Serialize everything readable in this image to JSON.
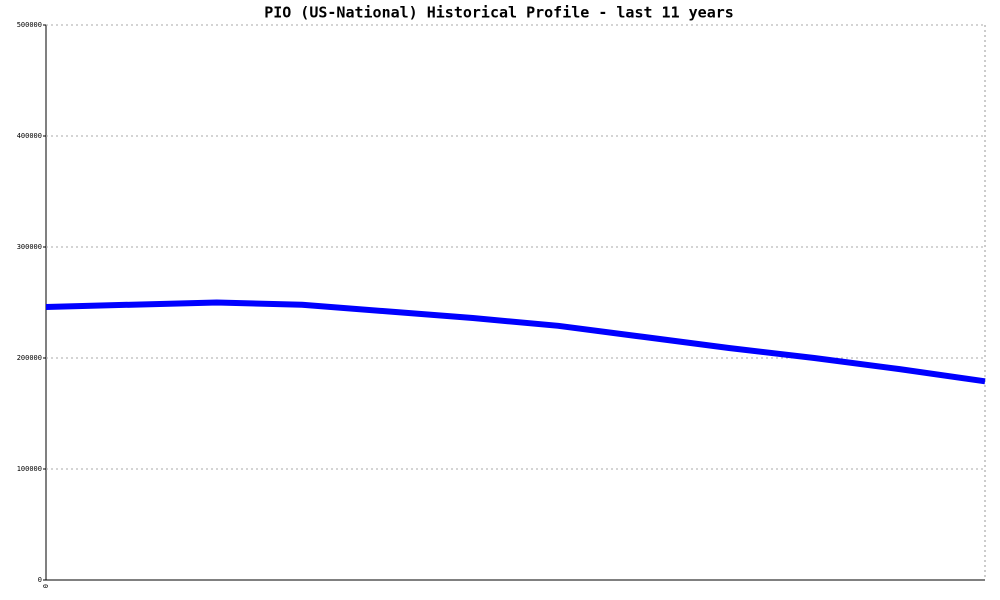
{
  "chart_data": {
    "type": "line",
    "title": "PIO (US-National) Historical Profile - last 11 years",
    "categories": [
      "0",
      null,
      null,
      null,
      null,
      null,
      null,
      null,
      null,
      null,
      null,
      null
    ],
    "series": [
      {
        "color": "#0000ff",
        "values": [
          246000,
          248000,
          250000,
          248000,
          242000,
          236000,
          229000,
          219000,
          209000,
          200000,
          190000,
          179000
        ]
      }
    ],
    "ylim": [
      0,
      500000
    ],
    "yticks": [
      0,
      100000,
      200000,
      300000,
      400000,
      500000
    ],
    "grid": true
  }
}
